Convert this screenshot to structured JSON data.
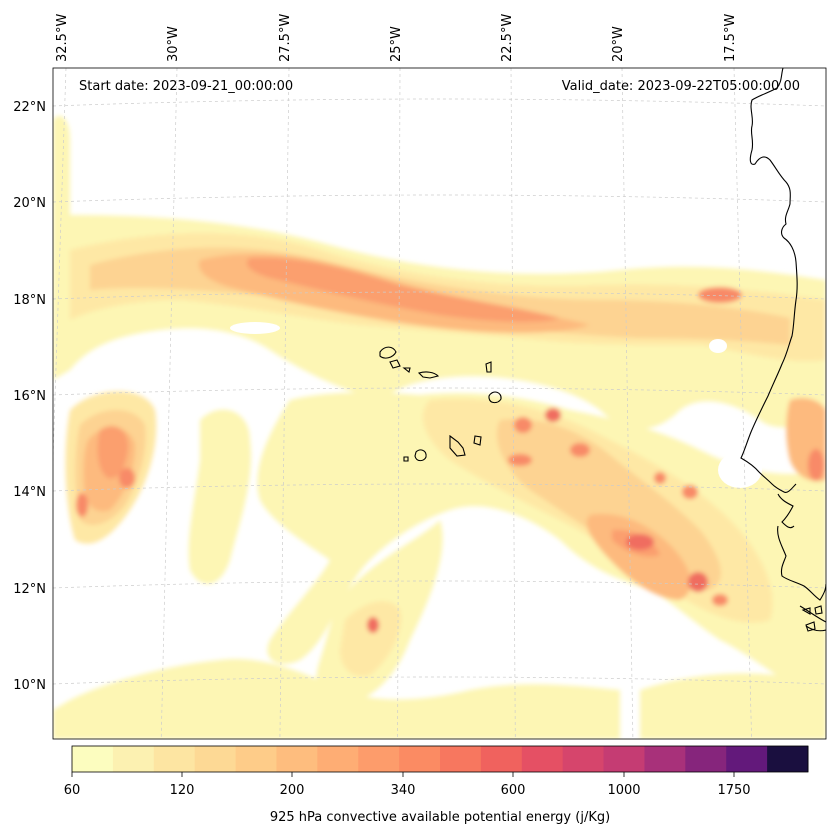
{
  "map": {
    "start_date": "Start date: 2023-09-21_00:00:00",
    "valid_date": "Valid_date: 2023-09-22T05:00:00.00",
    "lon_labels": [
      "32.5°W",
      "30°W",
      "27.5°W",
      "25°W",
      "22.5°W",
      "20°W",
      "17.5°W"
    ],
    "lat_labels": [
      "22°N",
      "20°N",
      "18°N",
      "16°N",
      "14°N",
      "12°N",
      "10°N"
    ],
    "field_colors": [
      "#fdf6b4",
      "#fee8a5",
      "#fdd392",
      "#fdba7e",
      "#fb9f6e",
      "#f88a67",
      "#f06d60",
      "#e35761"
    ]
  },
  "colorbar": {
    "label": "925 hPa convective available potential energy (j/Kg)",
    "tick_labels": [
      "60",
      "120",
      "200",
      "340",
      "600",
      "1000",
      "1750"
    ],
    "colors": [
      "#fcfdbf",
      "#fcf1b1",
      "#fde5a2",
      "#fdd995",
      "#fecc89",
      "#febd7e",
      "#fead74",
      "#fd9c6b",
      "#fb8b63",
      "#f7775f",
      "#f0625e",
      "#e55064",
      "#d6456c",
      "#c53c73",
      "#a8317a",
      "#86257c",
      "#63197b",
      "#1a0f3f"
    ]
  }
}
